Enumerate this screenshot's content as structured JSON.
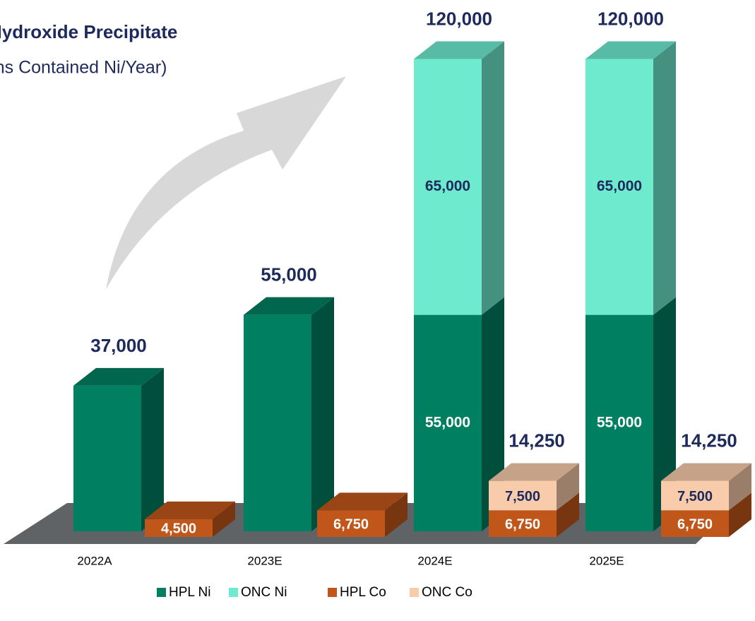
{
  "chart_data": {
    "type": "bar3d_stacked",
    "title": "Hydroxide Precipitate",
    "subtitle": "(Tons Contained Ni/Year)",
    "categories": [
      "2022A",
      "2023E",
      "2024E",
      "2025E"
    ],
    "series": [
      {
        "name": "HPL Ni",
        "color": "#008060",
        "stack": 0,
        "label_color": "#ffffff",
        "values": [
          37000,
          55000,
          55000,
          55000
        ],
        "value_labels": [
          null,
          null,
          "55,000",
          "55,000"
        ]
      },
      {
        "name": "ONC Ni",
        "color": "#6eeacf",
        "stack": 0,
        "label_color": "#1f2a5c",
        "values": [
          null,
          null,
          65000,
          65000
        ],
        "value_labels": [
          null,
          null,
          "65,000",
          "65,000"
        ]
      },
      {
        "name": "HPL Co",
        "color": "#c0561a",
        "stack": 1,
        "label_color": "#ffffff",
        "values": [
          4500,
          6750,
          6750,
          6750
        ],
        "value_labels": [
          "4,500",
          "6,750",
          "6,750",
          "6,750"
        ]
      },
      {
        "name": "ONC Co",
        "color": "#f8ccaa",
        "stack": 1,
        "label_color": "#1f2a5c",
        "values": [
          null,
          null,
          7500,
          7500
        ],
        "value_labels": [
          null,
          null,
          "7,500",
          "7,500"
        ]
      }
    ],
    "stack_totals": [
      {
        "stack": 0,
        "values": [
          37000,
          55000,
          120000,
          120000
        ],
        "value_labels": [
          "37,000",
          "55,000",
          "120,000",
          "120,000"
        ]
      },
      {
        "stack": 1,
        "values": [
          null,
          null,
          14250,
          14250
        ],
        "value_labels": [
          null,
          null,
          "14,250",
          "14,250"
        ]
      }
    ],
    "ylim": [
      0,
      135000
    ],
    "legend": "bottom"
  }
}
